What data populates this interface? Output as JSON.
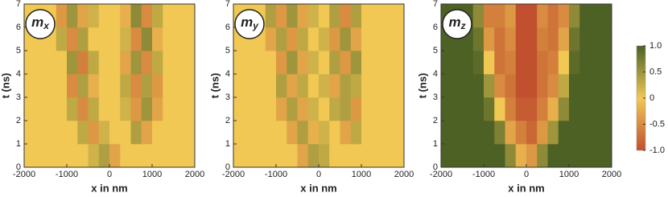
{
  "chart_data": [
    {
      "type": "heatmap",
      "title": "m",
      "title_sub": "x",
      "xlabel": "x in nm",
      "ylabel": "t (ns)",
      "xlim": [
        -2000,
        2000
      ],
      "ylim": [
        0,
        7
      ],
      "xticks": [
        -2000,
        -1000,
        0,
        1000,
        2000
      ],
      "yticks": [
        0,
        1,
        2,
        3,
        4,
        5,
        6,
        7
      ],
      "x": [
        -1875,
        -1625,
        -1375,
        -1125,
        -875,
        -625,
        -375,
        -125,
        125,
        375,
        625,
        875,
        1125,
        1375,
        1625,
        1875
      ],
      "y": [
        0.5,
        1.5,
        2.5,
        3.5,
        4.5,
        5.5,
        6.5
      ],
      "z": [
        [
          0,
          0,
          0,
          0,
          0,
          0,
          0.2,
          0.4,
          -0.3,
          0,
          0,
          0,
          0,
          0,
          0,
          0
        ],
        [
          0,
          0,
          0,
          0,
          0,
          0.3,
          -0.4,
          0.2,
          0,
          0,
          0.4,
          -0.3,
          0,
          0,
          0,
          0
        ],
        [
          0,
          0,
          0,
          0,
          0.3,
          -0.5,
          0.3,
          0,
          0,
          0.2,
          -0.4,
          0.5,
          -0.3,
          0,
          0,
          0
        ],
        [
          0,
          0,
          0,
          0,
          -0.5,
          0.4,
          -0.2,
          0,
          0,
          0.3,
          -0.5,
          0.4,
          -0.4,
          0,
          0,
          0
        ],
        [
          0,
          0,
          0,
          0,
          0.5,
          -0.6,
          0.3,
          0,
          0,
          -0.3,
          0.5,
          -0.5,
          0.3,
          0,
          0,
          0
        ],
        [
          0,
          0,
          0,
          0.3,
          -0.5,
          0.4,
          0,
          0,
          0,
          0.2,
          -0.5,
          0.6,
          -0.2,
          0,
          0,
          0
        ],
        [
          0,
          0,
          0,
          -0.4,
          0.5,
          -0.3,
          0.2,
          0,
          0,
          -0.2,
          0.6,
          -0.5,
          0.3,
          0,
          0,
          0
        ]
      ]
    },
    {
      "type": "heatmap",
      "title": "m",
      "title_sub": "y",
      "xlabel": "x in nm",
      "ylabel": "t (ns)",
      "xlim": [
        -2000,
        2000
      ],
      "ylim": [
        0,
        7
      ],
      "xticks": [
        -2000,
        -1000,
        0,
        1000,
        2000
      ],
      "yticks": [
        0,
        1,
        2,
        3,
        4,
        5,
        6,
        7
      ],
      "x": [
        -1875,
        -1625,
        -1375,
        -1125,
        -875,
        -625,
        -375,
        -125,
        125,
        375,
        625,
        875,
        1125,
        1375,
        1625,
        1875
      ],
      "y": [
        0.5,
        1.5,
        2.5,
        3.5,
        4.5,
        5.5,
        6.5
      ],
      "z": [
        [
          0,
          0,
          0,
          0,
          0,
          0,
          -0.3,
          0.4,
          0.3,
          0,
          0,
          0,
          0,
          0,
          0,
          0
        ],
        [
          0,
          0,
          0,
          0,
          0,
          -0.3,
          0.4,
          -0.2,
          0.2,
          0,
          -0.3,
          0.3,
          0,
          0,
          0,
          0
        ],
        [
          0,
          0,
          0,
          0,
          -0.3,
          0.4,
          -0.3,
          0.2,
          0,
          0.3,
          0.4,
          -0.4,
          0,
          0,
          0,
          0
        ],
        [
          0,
          0,
          0,
          0,
          0.4,
          -0.3,
          0.3,
          0,
          0.2,
          -0.3,
          0.4,
          0.3,
          0,
          0,
          0,
          0
        ],
        [
          0,
          0,
          0,
          0,
          -0.4,
          0.5,
          -0.3,
          0.2,
          0,
          0.4,
          -0.4,
          0.5,
          0,
          0,
          0,
          0
        ],
        [
          0,
          0,
          0,
          -0.3,
          0.4,
          -0.4,
          0.3,
          0,
          0.2,
          -0.4,
          0.5,
          -0.3,
          0,
          0,
          0,
          0
        ],
        [
          0,
          0,
          0,
          0.4,
          -0.4,
          0.5,
          -0.3,
          0.2,
          0,
          0.4,
          -0.5,
          0.4,
          0,
          0,
          0,
          0
        ]
      ]
    },
    {
      "type": "heatmap",
      "title": "m",
      "title_sub": "z",
      "xlabel": "x in nm",
      "ylabel": "t (ns)",
      "xlim": [
        -2000,
        2000
      ],
      "ylim": [
        0,
        7
      ],
      "xticks": [
        -2000,
        -1000,
        0,
        1000,
        2000
      ],
      "yticks": [
        0,
        1,
        2,
        3,
        4,
        5,
        6,
        7
      ],
      "x": [
        -1875,
        -1625,
        -1375,
        -1125,
        -875,
        -625,
        -375,
        -125,
        125,
        375,
        625,
        875,
        1125,
        1375,
        1625,
        1875
      ],
      "y": [
        0.5,
        1.5,
        2.5,
        3.5,
        4.5,
        5.5,
        6.5
      ],
      "z": [
        [
          1,
          1,
          1,
          1,
          1,
          1,
          0.6,
          -0.2,
          -0.4,
          0.6,
          1,
          1,
          1,
          1,
          1,
          1
        ],
        [
          1,
          1,
          1,
          1,
          1,
          0.7,
          -0.3,
          -0.6,
          -0.8,
          -0.4,
          0.5,
          1,
          1,
          1,
          1,
          1
        ],
        [
          1,
          1,
          1,
          1,
          0.8,
          0,
          -0.6,
          -0.9,
          -0.9,
          -0.6,
          -0.2,
          0.6,
          1,
          1,
          1,
          1
        ],
        [
          1,
          1,
          1,
          1,
          0.5,
          -0.5,
          -0.7,
          -1,
          -1,
          -0.7,
          -0.5,
          0.3,
          1,
          1,
          1,
          1
        ],
        [
          1,
          1,
          1,
          0.9,
          0,
          -0.7,
          -0.6,
          -1,
          -1,
          -0.7,
          -0.6,
          0,
          0.9,
          1,
          1,
          1
        ],
        [
          1,
          1,
          1,
          0.8,
          -0.4,
          -0.7,
          -0.5,
          -1,
          -1,
          -0.6,
          -0.7,
          -0.3,
          0.8,
          1,
          1,
          1
        ],
        [
          1,
          1,
          1,
          0.6,
          -0.6,
          -0.6,
          -0.4,
          -1,
          -1,
          -0.5,
          -0.7,
          -0.5,
          0.6,
          1,
          1,
          1
        ]
      ]
    },
    {
      "type": "colorbar",
      "lim": [
        -1,
        1
      ],
      "colorscale": [
        "#c1502e",
        "#f0c853",
        "#4d6125"
      ],
      "ticks": [
        {
          "value": 1,
          "label": "1.0"
        },
        0.5,
        0,
        -0.5,
        {
          "value": -1,
          "label": "-1.0"
        }
      ]
    }
  ]
}
